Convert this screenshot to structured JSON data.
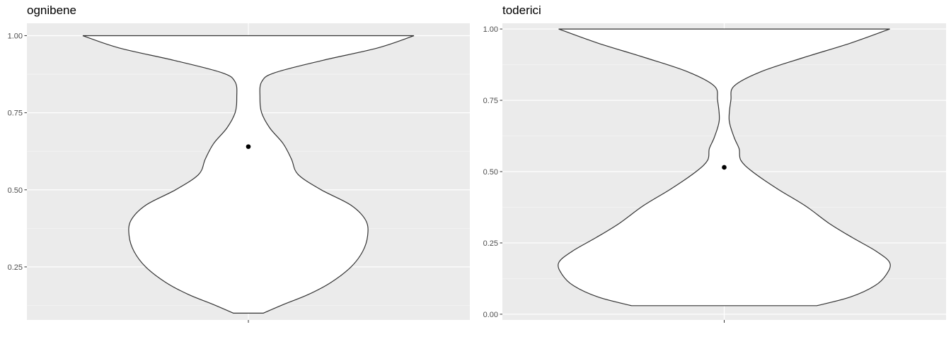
{
  "chart_data": [
    {
      "type": "violin",
      "title": "ognibene",
      "xlabel": "",
      "ylabel": "",
      "ylim": [
        0.078,
        1.04
      ],
      "yticks": [
        0.25,
        0.5,
        0.75,
        1.0
      ],
      "ytick_labels": [
        "0.25",
        "0.50",
        "0.75",
        "1.00"
      ],
      "ytick_minor": [
        0.125,
        0.375,
        0.625,
        0.875
      ],
      "xtick_labels": [
        ""
      ],
      "grid": true,
      "y_min": 0.1,
      "y_max": 1.0,
      "mean": 0.64,
      "density_profile": [
        [
          0.1,
          0.09
        ],
        [
          0.13,
          0.22
        ],
        [
          0.16,
          0.36
        ],
        [
          0.2,
          0.5
        ],
        [
          0.25,
          0.62
        ],
        [
          0.3,
          0.69
        ],
        [
          0.35,
          0.72
        ],
        [
          0.4,
          0.71
        ],
        [
          0.45,
          0.62
        ],
        [
          0.5,
          0.44
        ],
        [
          0.55,
          0.3
        ],
        [
          0.6,
          0.26
        ],
        [
          0.65,
          0.21
        ],
        [
          0.7,
          0.13
        ],
        [
          0.75,
          0.08
        ],
        [
          0.8,
          0.07
        ],
        [
          0.85,
          0.08
        ],
        [
          0.88,
          0.16
        ],
        [
          0.92,
          0.45
        ],
        [
          0.96,
          0.78
        ],
        [
          1.0,
          1.0
        ]
      ]
    },
    {
      "type": "violin",
      "title": "toderici",
      "xlabel": "",
      "ylabel": "",
      "ylim": [
        -0.02,
        1.02
      ],
      "yticks": [
        0.0,
        0.25,
        0.5,
        0.75,
        1.0
      ],
      "ytick_labels": [
        "0.00",
        "0.25",
        "0.50",
        "0.75",
        "1.00"
      ],
      "ytick_minor": [
        0.125,
        0.375,
        0.625,
        0.875
      ],
      "xtick_labels": [
        ""
      ],
      "grid": true,
      "y_min": 0.03,
      "y_max": 1.0,
      "mean": 0.515,
      "density_profile": [
        [
          0.03,
          0.56
        ],
        [
          0.06,
          0.76
        ],
        [
          0.1,
          0.91
        ],
        [
          0.14,
          0.98
        ],
        [
          0.18,
          1.0
        ],
        [
          0.22,
          0.92
        ],
        [
          0.27,
          0.77
        ],
        [
          0.32,
          0.63
        ],
        [
          0.38,
          0.49
        ],
        [
          0.44,
          0.32
        ],
        [
          0.5,
          0.17
        ],
        [
          0.54,
          0.1
        ],
        [
          0.58,
          0.09
        ],
        [
          0.62,
          0.06
        ],
        [
          0.68,
          0.03
        ],
        [
          0.75,
          0.04
        ],
        [
          0.8,
          0.06
        ],
        [
          0.85,
          0.22
        ],
        [
          0.9,
          0.48
        ],
        [
          0.95,
          0.76
        ],
        [
          1.0,
          1.0
        ]
      ]
    }
  ]
}
